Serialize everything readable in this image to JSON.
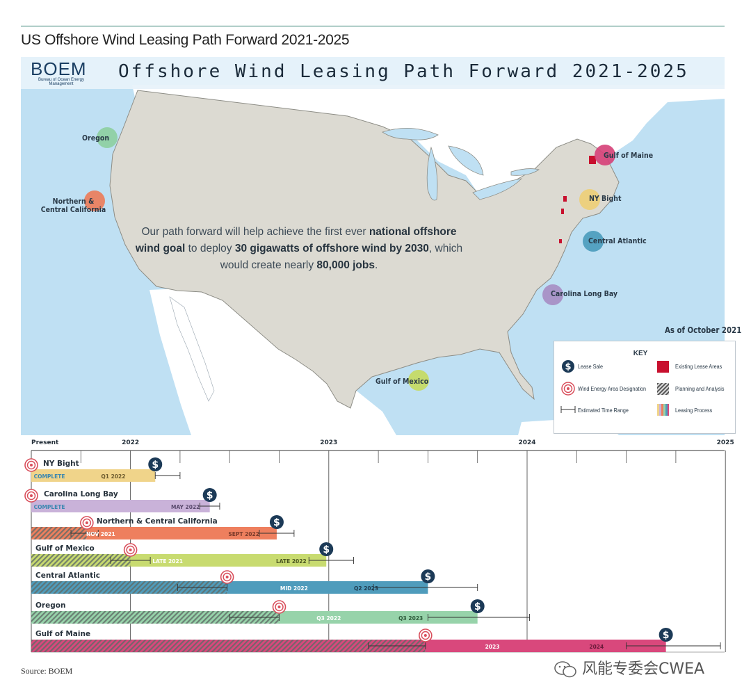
{
  "page": {
    "title": "US Offshore Wind Leasing Path Forward 2021-2025",
    "source": "Source: BOEM",
    "watermark": "风能专委会CWEA"
  },
  "banner": {
    "logo": "BOEM",
    "logo_sub": "Bureau of Ocean Energy Management",
    "title": "Offshore Wind Leasing Path Forward 2021-2025"
  },
  "map": {
    "statement": {
      "t1": "Our path forward will help achieve the first ever ",
      "b1": "national offshore wind goal",
      "t2": " to deploy ",
      "b2": "30 gigawatts of offshore wind by 2030",
      "t3": ", which would create nearly ",
      "b3": "80,000 jobs",
      "t4": "."
    },
    "as_of": "As of October 2021",
    "regions": [
      {
        "name": "Oregon",
        "color": "#8ecfa2"
      },
      {
        "name": "Northern & Central California",
        "color": "#ec7d5b"
      },
      {
        "name": "Gulf of Maine",
        "color": "#d6437a"
      },
      {
        "name": "NY Bight",
        "color": "#edcf77"
      },
      {
        "name": "Central Atlantic",
        "color": "#4c9cbd"
      },
      {
        "name": "Carolina Long Bay",
        "color": "#a78ec4"
      },
      {
        "name": "Gulf of Mexico",
        "color": "#c5da62"
      }
    ],
    "key": {
      "title": "KEY",
      "items": {
        "lease_sale": "Lease Sale",
        "wea": "Wind Energy Area Designation",
        "range": "Estimated Time Range",
        "existing": "Existing Lease Areas",
        "planning": "Planning and Analysis",
        "process": "Leasing Process"
      }
    }
  },
  "timeline": {
    "axis_labels": {
      "present": "Present",
      "y2022": "2022",
      "y2023": "2023",
      "y2024": "2024",
      "y2025": "2025"
    },
    "rows": [
      {
        "name": "NY Bight",
        "color": "#f0d48a",
        "tags": [
          "COMPLETE",
          "Q1 2022"
        ]
      },
      {
        "name": "Carolina Long Bay",
        "color": "#c9b2d9",
        "tags": [
          "COMPLETE",
          "MAY 2022"
        ]
      },
      {
        "name": "Northern & Central California",
        "color": "#ee7f5e",
        "tags": [
          "NOV 2021",
          "SEPT 2022"
        ]
      },
      {
        "name": "Gulf of Mexico",
        "color": "#c8db70",
        "tags": [
          "LATE 2021",
          "LATE 2022"
        ]
      },
      {
        "name": "Central Atlantic",
        "color": "#4f9cbc",
        "tags": [
          "MID 2022",
          "Q2 2023"
        ]
      },
      {
        "name": "Oregon",
        "color": "#97d3aa",
        "tags": [
          "Q3 2022",
          "Q3 2023"
        ]
      },
      {
        "name": "Gulf of Maine",
        "color": "#d9487c",
        "tags": [
          "2023",
          "2024"
        ]
      }
    ]
  }
}
